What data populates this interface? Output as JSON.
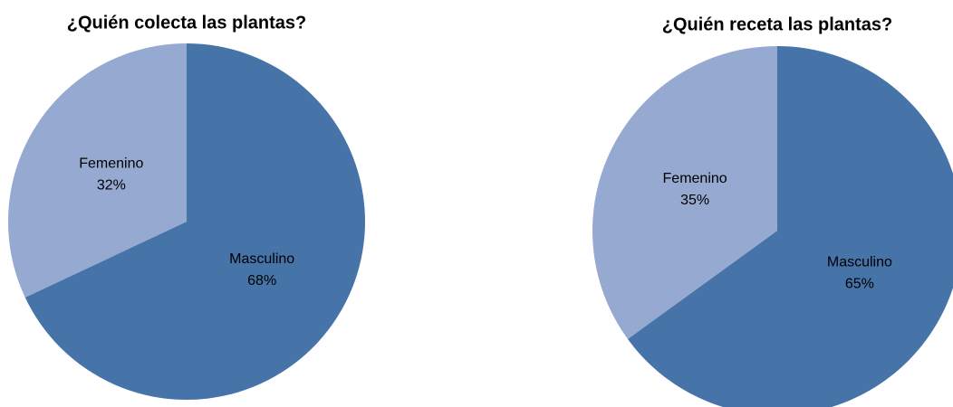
{
  "chart_data": [
    {
      "type": "pie",
      "title": "¿Quién colecta las plantas?",
      "categories": [
        "Masculino",
        "Femenino"
      ],
      "values": [
        68,
        32
      ],
      "value_labels": [
        "68%",
        "32%"
      ],
      "colors": [
        "#4673a8",
        "#95a9d1"
      ]
    },
    {
      "type": "pie",
      "title": "¿Quién receta las plantas?",
      "categories": [
        "Masculino",
        "Femenino"
      ],
      "values": [
        65,
        35
      ],
      "value_labels": [
        "65%",
        "35%"
      ],
      "colors": [
        "#4673a8",
        "#95a9d1"
      ]
    }
  ]
}
